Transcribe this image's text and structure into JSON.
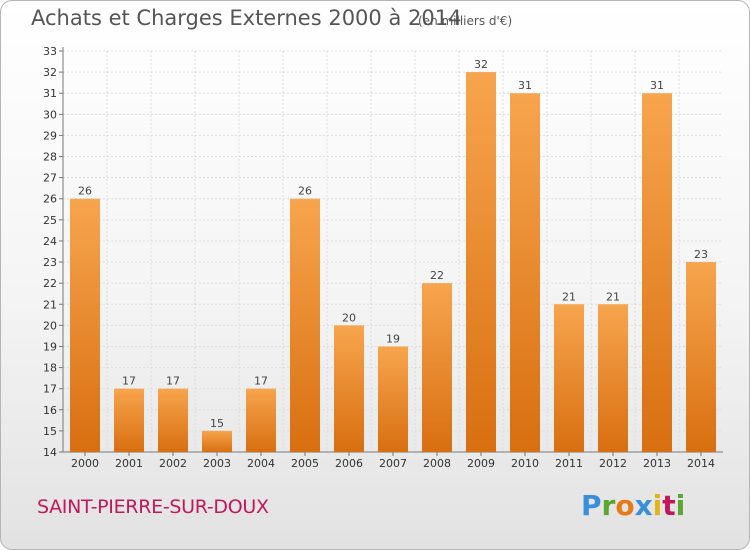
{
  "header": {
    "title": "Achats et Charges Externes 2000 à 2014",
    "unit": "(en milliers d'€)"
  },
  "footer": {
    "place": "SAINT-PIERRE-SUR-DOUX",
    "logo_letters": [
      "P",
      "r",
      "o",
      "x",
      "i",
      "t",
      "i"
    ]
  },
  "colors": {
    "bar_light": "#f7a54e",
    "bar_dark": "#d86f10",
    "place_text": "#c2185b",
    "grid": "#dddddd"
  },
  "chart_data": {
    "type": "bar",
    "title": "Achats et Charges Externes 2000 à 2014",
    "subtitle": "(en milliers d'€)",
    "categories": [
      "2000",
      "2001",
      "2002",
      "2003",
      "2004",
      "2005",
      "2006",
      "2007",
      "2008",
      "2009",
      "2010",
      "2011",
      "2012",
      "2013",
      "2014"
    ],
    "values": [
      26,
      17,
      17,
      15,
      17,
      26,
      20,
      19,
      22,
      32,
      31,
      21,
      21,
      31,
      23
    ],
    "ylim": [
      14,
      33
    ],
    "yticks": [
      14,
      15,
      16,
      17,
      18,
      19,
      20,
      21,
      22,
      23,
      24,
      25,
      26,
      27,
      28,
      29,
      30,
      31,
      32,
      33
    ],
    "grid": true,
    "legend": "none"
  }
}
